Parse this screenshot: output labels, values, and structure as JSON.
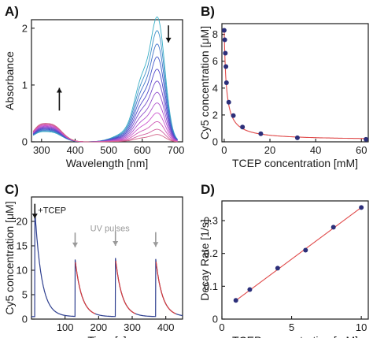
{
  "colors": {
    "axis": "#1a1a1a",
    "fit": "#e04a4a",
    "points": "#2c2f7a",
    "trace": "#2e3f8f",
    "trace_fit": "#d83b3b",
    "gray_arrow": "#9a9a9a"
  },
  "chart_data": [
    {
      "panel": "A)",
      "type": "line",
      "xlabel": "Wavelength [nm]",
      "ylabel": "Absorbance",
      "xlim": [
        270,
        720
      ],
      "ylim": [
        0,
        2.15
      ],
      "xticks": [
        300,
        400,
        500,
        600,
        700
      ],
      "yticks": [
        0,
        1,
        2
      ],
      "series_count": 12,
      "peak_nm": 647,
      "shoulder_nm": 600,
      "uv_band_nm": 330,
      "peak_max": 2.05,
      "peak_min": 0.12,
      "uv_band_min": 0.18,
      "uv_band_max": 0.33,
      "arrows": [
        {
          "direction": "up",
          "wavelength": 353,
          "from": 0.55,
          "to": 0.95
        },
        {
          "direction": "down",
          "wavelength": 678,
          "from": 2.05,
          "to": 1.75
        }
      ]
    },
    {
      "panel": "B)",
      "type": "scatter",
      "xlabel": "TCEP concentration [mM]",
      "ylabel": "Cy5 concentration [μM]",
      "xlim": [
        -1,
        63
      ],
      "ylim": [
        0,
        8.8
      ],
      "xticks": [
        0,
        20,
        40,
        60
      ],
      "yticks": [
        0,
        2,
        4,
        6,
        8
      ],
      "points": [
        {
          "x": 0,
          "y": 8.3
        },
        {
          "x": 0.25,
          "y": 7.6
        },
        {
          "x": 0.5,
          "y": 6.6
        },
        {
          "x": 0.75,
          "y": 5.6
        },
        {
          "x": 1,
          "y": 4.4
        },
        {
          "x": 2,
          "y": 2.95
        },
        {
          "x": 4,
          "y": 1.95
        },
        {
          "x": 8,
          "y": 1.1
        },
        {
          "x": 16,
          "y": 0.6
        },
        {
          "x": 32,
          "y": 0.3
        },
        {
          "x": 62,
          "y": 0.18
        }
      ],
      "fit": {
        "model": "a/(1+x/k)+c",
        "a": 8.15,
        "k": 0.95,
        "c": 0.12
      }
    },
    {
      "panel": "C)",
      "type": "line",
      "xlabel": "Time [s]",
      "ylabel": "Cy5 concentration [μM]",
      "xlim": [
        0,
        450
      ],
      "ylim": [
        0,
        25
      ],
      "xticks": [
        100,
        200,
        300,
        400
      ],
      "yticks": [
        0,
        5,
        10,
        15,
        20
      ],
      "annotations": [
        {
          "text": "+TCEP",
          "x": 10,
          "y": 22
        },
        {
          "text": "UV pulses",
          "x": 175,
          "y": 18
        }
      ],
      "pulses": [
        {
          "t": 10,
          "peak": 22.5
        },
        {
          "t": 130,
          "peak": 12.2
        },
        {
          "t": 250,
          "peak": 12.5
        },
        {
          "t": 370,
          "peak": 12.3
        }
      ],
      "baseline": 0.5,
      "decay_rate": 0.05
    },
    {
      "panel": "D)",
      "type": "scatter",
      "xlabel": "TCEP concentration [mM]",
      "ylabel": "Decay Rate [1/s]",
      "xlim": [
        0,
        10.5
      ],
      "ylim": [
        0,
        0.36
      ],
      "xticks": [
        0,
        5,
        10
      ],
      "yticks": [
        0,
        0.1,
        0.2,
        0.3
      ],
      "points": [
        {
          "x": 1,
          "y": 0.057
        },
        {
          "x": 2,
          "y": 0.09
        },
        {
          "x": 4,
          "y": 0.155
        },
        {
          "x": 6,
          "y": 0.21
        },
        {
          "x": 8,
          "y": 0.28
        },
        {
          "x": 10,
          "y": 0.34
        }
      ],
      "fit": {
        "model": "linear",
        "slope": 0.0315,
        "intercept": 0.025
      }
    }
  ]
}
